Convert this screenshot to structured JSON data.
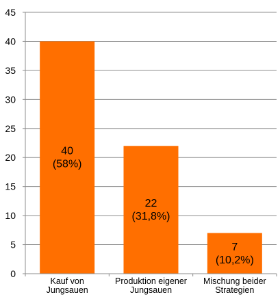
{
  "chart_data": {
    "type": "bar",
    "title": "",
    "xlabel": "",
    "ylabel": "",
    "ylim": [
      0,
      45
    ],
    "yticks": [
      0,
      5,
      10,
      15,
      20,
      25,
      30,
      35,
      40,
      45
    ],
    "grid": true,
    "legend": "none",
    "categories": [
      [
        "Kauf von",
        "Jungsauen"
      ],
      [
        "Produktion eigener",
        "Jungsauen"
      ],
      [
        "Mischung beider",
        "Strategien"
      ]
    ],
    "values": [
      40,
      22,
      7
    ],
    "data_labels": [
      [
        "40",
        "(58%)"
      ],
      [
        "22",
        "(31,8%)"
      ],
      [
        "7",
        "(10,2%)"
      ]
    ],
    "colors": {
      "bar": "#FF6F00",
      "gridline": "#8C8C8C",
      "axis": "#8C8C8C"
    }
  }
}
